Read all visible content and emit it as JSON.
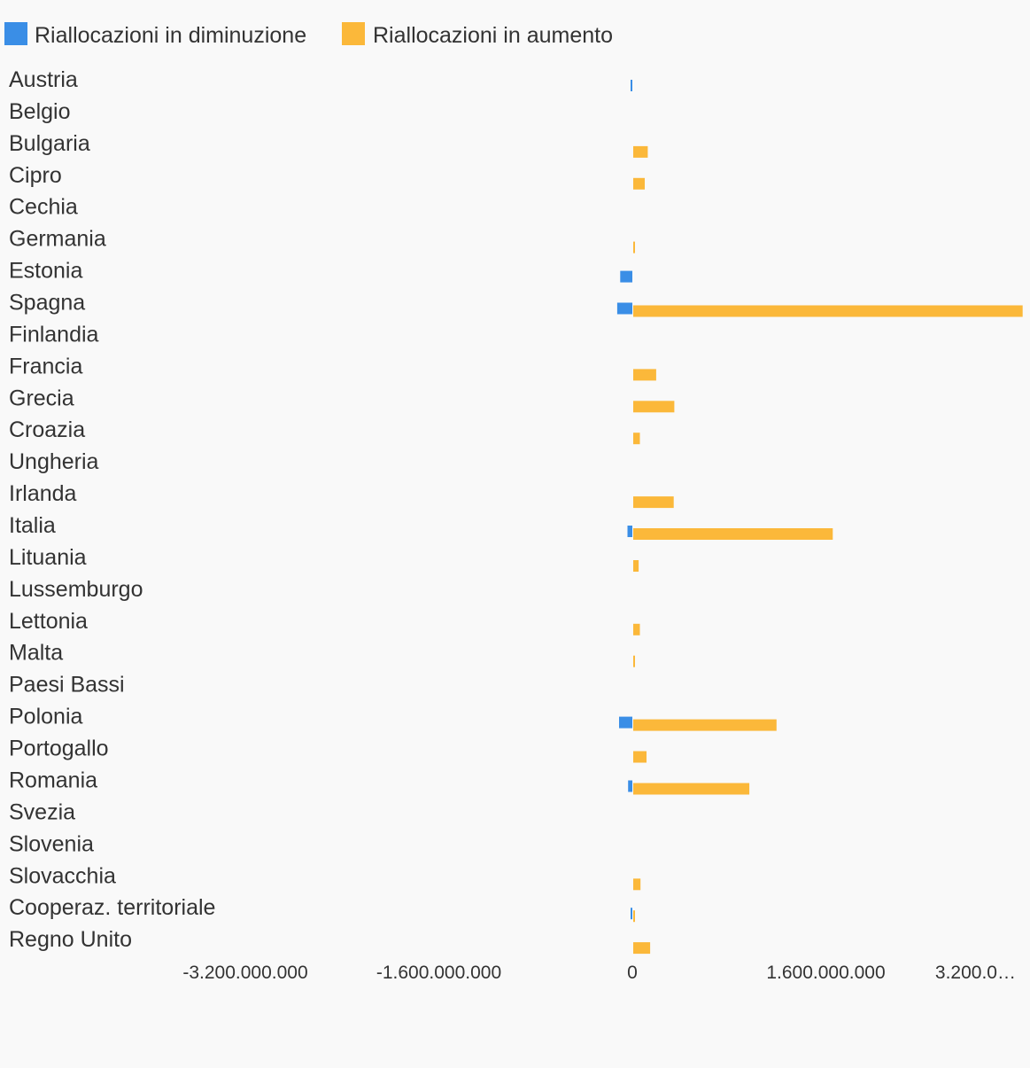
{
  "chart_data": {
    "type": "bar",
    "orientation": "horizontal",
    "categories": [
      "Austria",
      "Belgio",
      "Bulgaria",
      "Cipro",
      "Cechia",
      "Germania",
      "Estonia",
      "Spagna",
      "Finlandia",
      "Francia",
      "Grecia",
      "Croazia",
      "Ungheria",
      "Irlanda",
      "Italia",
      "Lituania",
      "Lussemburgo",
      "Lettonia",
      "Malta",
      "Paesi Bassi",
      "Polonia",
      "Portogallo",
      "Romania",
      "Svezia",
      "Slovenia",
      "Slovacchia",
      "Cooperaz. territoriale",
      "Regno Unito"
    ],
    "series": [
      {
        "name": "Riallocazioni in diminuzione",
        "color": "#3a8ee6",
        "values": [
          -5000000,
          0,
          0,
          0,
          0,
          0,
          -100000000,
          -125000000,
          0,
          0,
          0,
          0,
          0,
          0,
          -40000000,
          0,
          0,
          0,
          0,
          0,
          -110000000,
          0,
          -35000000,
          0,
          0,
          0,
          -10000000,
          0
        ]
      },
      {
        "name": "Riallocazioni in aumento",
        "color": "#fbb83a",
        "values": [
          0,
          0,
          120000000,
          95000000,
          0,
          8000000,
          0,
          3220000000,
          0,
          190000000,
          340000000,
          55000000,
          0,
          335000000,
          1650000000,
          45000000,
          0,
          55000000,
          15000000,
          0,
          1185000000,
          110000000,
          960000000,
          0,
          0,
          60000000,
          15000000,
          140000000
        ]
      }
    ],
    "x_ticks": [
      "-3.200.000.000",
      "-1.600.000.000",
      "0",
      "1.600.000.000",
      "3.200.0…"
    ],
    "x_tick_values": [
      -3200000000,
      -1600000000,
      0,
      1600000000,
      3200000000
    ],
    "xlim": [
      -3200000000,
      3200000000
    ],
    "legend_position": "top-left",
    "grid": false
  }
}
